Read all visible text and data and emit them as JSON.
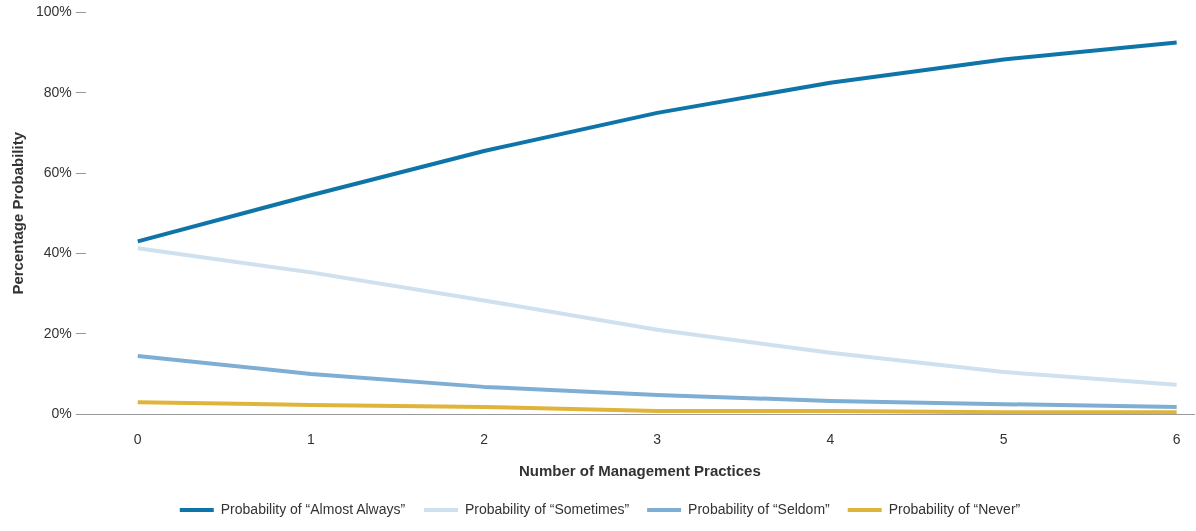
{
  "chart_data": {
    "type": "line",
    "xlabel": "Number of Management Practices",
    "ylabel": "Percentage Probability",
    "x": [
      0,
      1,
      2,
      3,
      4,
      5,
      6
    ],
    "xlim": [
      -0.3,
      6.1
    ],
    "xticks": [
      0,
      1,
      2,
      3,
      4,
      5,
      6
    ],
    "ylim": [
      0,
      100
    ],
    "yticks": [
      {
        "value": 0,
        "label": "0%"
      },
      {
        "value": 20,
        "label": "20%"
      },
      {
        "value": 40,
        "label": "40%"
      },
      {
        "value": 60,
        "label": "60%"
      },
      {
        "value": 80,
        "label": "80%"
      },
      {
        "value": 100,
        "label": "100%"
      }
    ],
    "grid": false,
    "legend": "bottom",
    "marker": "none",
    "line_style": "solid",
    "series": [
      {
        "name": "Probability of “Almost Always”",
        "color": "#0f75a8",
        "values": [
          43,
          54.5,
          65.5,
          75,
          82.5,
          88.3,
          92.5
        ]
      },
      {
        "name": "Probability of “Sometimes”",
        "color": "#cfe0ef",
        "values": [
          41.3,
          35.3,
          28.3,
          21,
          15.3,
          10.5,
          7.3
        ]
      },
      {
        "name": "Probability of “Seldom”",
        "color": "#7eaed4",
        "values": [
          14.5,
          10,
          6.8,
          4.8,
          3.3,
          2.5,
          1.8
        ]
      },
      {
        "name": "Probability of “Never”",
        "color": "#e0b43a",
        "values": [
          3,
          2.3,
          1.8,
          0.8,
          0.8,
          0.5,
          0.5
        ]
      }
    ]
  }
}
